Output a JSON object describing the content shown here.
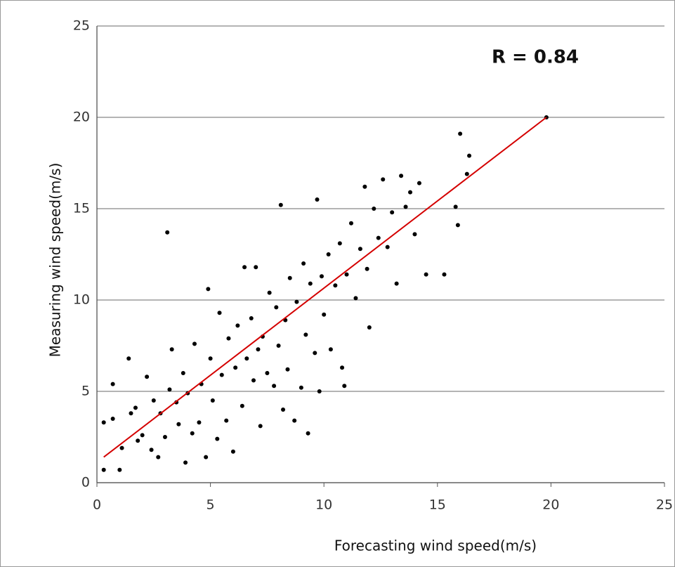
{
  "chart_data": {
    "type": "scatter",
    "annotation": "R = 0.84",
    "x_label": "Forecasting wind speed(m/s)",
    "y_label": "Measuring wind speed(m/s)",
    "xlim": [
      0,
      25
    ],
    "xticks": [
      0,
      5,
      10,
      15,
      20,
      25
    ],
    "ylim": [
      0,
      25
    ],
    "yticks": [
      0,
      5,
      10,
      15,
      20,
      25
    ],
    "grid": true,
    "series": [
      {
        "color": "#000000",
        "x": [
          0.3,
          0.3,
          0.7,
          0.7,
          1,
          1.1,
          1.4,
          1.5,
          1.7,
          1.8,
          2,
          2.2,
          2.4,
          2.5,
          2.7,
          2.8,
          3,
          3.1,
          3.2,
          3.3,
          3.5,
          3.6,
          3.8,
          3.9,
          4.0,
          4.2,
          4.3,
          4.5,
          4.6,
          4.8,
          4.9,
          5.0,
          5.1,
          5.3,
          5.4,
          5.5,
          5.7,
          5.8,
          6.0,
          6.1,
          6.2,
          6.4,
          6.5,
          6.6,
          6.8,
          6.9,
          7.0,
          7.1,
          7.2,
          7.3,
          7.5,
          7.6,
          7.8,
          7.9,
          8.0,
          8.1,
          8.2,
          8.3,
          8.4,
          8.5,
          8.7,
          8.8,
          9.0,
          9.1,
          9.2,
          9.3,
          9.4,
          9.6,
          9.7,
          9.8,
          9.9,
          10.0,
          10.2,
          10.3,
          10.5,
          10.7,
          10.8,
          10.9,
          11.0,
          11.2,
          11.4,
          11.6,
          11.8,
          11.9,
          12.0,
          12.2,
          12.4,
          12.6,
          12.8,
          13.0,
          13.2,
          13.4,
          13.6,
          13.8,
          14.0,
          14.2,
          14.5,
          15.3,
          15.8,
          15.9,
          16.0,
          16.4,
          16.3,
          19.8
        ],
        "values": [
          0.7,
          3.3,
          3.5,
          5.4,
          0.7,
          1.9,
          6.8,
          3.8,
          4.1,
          2.3,
          2.6,
          5.8,
          1.8,
          4.5,
          1.4,
          3.8,
          2.5,
          13.7,
          5.1,
          7.3,
          4.4,
          3.2,
          6.0,
          1.1,
          4.9,
          2.7,
          7.6,
          3.3,
          5.4,
          1.4,
          10.6,
          6.8,
          4.5,
          2.4,
          9.3,
          5.9,
          3.4,
          7.9,
          1.7,
          6.3,
          8.6,
          4.2,
          11.8,
          6.8,
          9.0,
          5.6,
          11.8,
          7.3,
          3.1,
          8.0,
          6.0,
          10.4,
          5.3,
          9.6,
          7.5,
          15.2,
          4.0,
          8.9,
          6.2,
          11.2,
          3.4,
          9.9,
          5.2,
          12.0,
          8.1,
          2.7,
          10.9,
          7.1,
          15.5,
          5.0,
          11.3,
          9.2,
          12.5,
          7.3,
          10.8,
          13.1,
          6.3,
          5.3,
          11.4,
          14.2,
          10.1,
          12.8,
          16.2,
          11.7,
          8.5,
          15.0,
          13.4,
          16.6,
          12.9,
          14.8,
          10.9,
          16.8,
          15.1,
          15.9,
          13.6,
          16.4,
          11.4,
          11.4,
          15.1,
          14.1,
          19.1,
          17.9,
          16.9,
          20
        ]
      }
    ],
    "fit_line": {
      "color": "#d40000",
      "x": [
        0.3,
        19.8
      ],
      "values": [
        1.4,
        20
      ]
    }
  }
}
